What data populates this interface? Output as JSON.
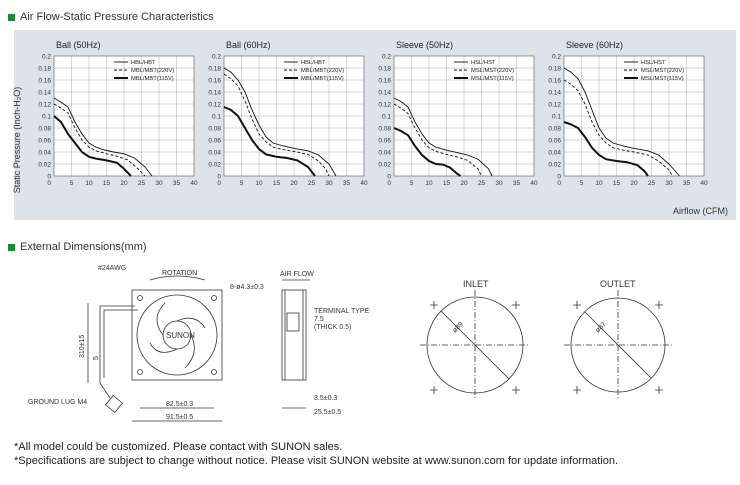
{
  "section1_title": "Air Flow-Static Pressure Characteristics",
  "section2_title": "External Dimensions(mm)",
  "y_axis_label": "Static Pressure (Inch-H₂O)",
  "x_axis_label": "Airflow (CFM)",
  "colors": {
    "accent": "#1a8a3a",
    "panel": "#dde3ea"
  },
  "chart_data": [
    {
      "type": "line",
      "title": "Ball (50Hz)",
      "xlim": [
        0,
        40
      ],
      "ylim": [
        0,
        0.2
      ],
      "x_ticks": [
        5,
        10,
        15,
        20,
        25,
        30,
        35,
        40
      ],
      "y_ticks": [
        "0",
        "0.02",
        "0.04",
        "0.06",
        "0.08",
        "0.1",
        "0.12",
        "0.14",
        "0.16",
        "0.18",
        "0.2"
      ],
      "series": [
        {
          "name": "HBL/HBT",
          "style": "thin",
          "points": [
            [
              0,
              0.13
            ],
            [
              2,
              0.123
            ],
            [
              4,
              0.115
            ],
            [
              6,
              0.09
            ],
            [
              8,
              0.07
            ],
            [
              10,
              0.055
            ],
            [
              12,
              0.048
            ],
            [
              14,
              0.044
            ],
            [
              17,
              0.04
            ],
            [
              20,
              0.037
            ],
            [
              23,
              0.03
            ],
            [
              26,
              0.015
            ],
            [
              28,
              0
            ]
          ]
        },
        {
          "name": "MBL/MBT(220V)",
          "style": "dashed",
          "points": [
            [
              0,
              0.12
            ],
            [
              2,
              0.113
            ],
            [
              4,
              0.105
            ],
            [
              6,
              0.08
            ],
            [
              8,
              0.06
            ],
            [
              10,
              0.048
            ],
            [
              12,
              0.042
            ],
            [
              15,
              0.037
            ],
            [
              18,
              0.033
            ],
            [
              21,
              0.027
            ],
            [
              24,
              0.012
            ],
            [
              26,
              0
            ]
          ]
        },
        {
          "name": "MBL/MBT(115V)",
          "style": "bold",
          "points": [
            [
              0,
              0.1
            ],
            [
              2,
              0.09
            ],
            [
              4,
              0.07
            ],
            [
              6,
              0.055
            ],
            [
              8,
              0.04
            ],
            [
              10,
              0.032
            ],
            [
              12,
              0.029
            ],
            [
              15,
              0.026
            ],
            [
              18,
              0.022
            ],
            [
              20,
              0.012
            ],
            [
              22,
              0
            ]
          ]
        }
      ]
    },
    {
      "type": "line",
      "title": "Ball (60Hz)",
      "xlim": [
        0,
        40
      ],
      "ylim": [
        0,
        0.2
      ],
      "x_ticks": [
        5,
        10,
        15,
        20,
        25,
        30,
        35,
        40
      ],
      "y_ticks": [
        "0",
        "0.02",
        "0.04",
        "0.06",
        "0.08",
        "0.1",
        "0.12",
        "0.14",
        "0.16",
        "0.18",
        "0.2"
      ],
      "series": [
        {
          "name": "HBL/HBT",
          "style": "thin",
          "points": [
            [
              0,
              0.18
            ],
            [
              2,
              0.173
            ],
            [
              4,
              0.16
            ],
            [
              6,
              0.14
            ],
            [
              8,
              0.11
            ],
            [
              10,
              0.085
            ],
            [
              12,
              0.065
            ],
            [
              14,
              0.055
            ],
            [
              17,
              0.05
            ],
            [
              20,
              0.046
            ],
            [
              24,
              0.042
            ],
            [
              27,
              0.035
            ],
            [
              30,
              0.02
            ],
            [
              32,
              0
            ]
          ]
        },
        {
          "name": "MBL/MBT(220V)",
          "style": "dashed",
          "points": [
            [
              0,
              0.17
            ],
            [
              2,
              0.162
            ],
            [
              4,
              0.15
            ],
            [
              6,
              0.125
            ],
            [
              8,
              0.095
            ],
            [
              10,
              0.07
            ],
            [
              12,
              0.057
            ],
            [
              14,
              0.048
            ],
            [
              17,
              0.044
            ],
            [
              20,
              0.041
            ],
            [
              24,
              0.036
            ],
            [
              27,
              0.025
            ],
            [
              29,
              0.012
            ],
            [
              30,
              0
            ]
          ]
        },
        {
          "name": "MBL/MBT(115V)",
          "style": "bold",
          "points": [
            [
              0,
              0.115
            ],
            [
              2,
              0.11
            ],
            [
              4,
              0.1
            ],
            [
              6,
              0.08
            ],
            [
              8,
              0.06
            ],
            [
              10,
              0.045
            ],
            [
              12,
              0.036
            ],
            [
              15,
              0.032
            ],
            [
              18,
              0.03
            ],
            [
              21,
              0.026
            ],
            [
              24,
              0.015
            ],
            [
              26,
              0
            ]
          ]
        }
      ]
    },
    {
      "type": "line",
      "title": "Sleeve (50Hz)",
      "xlim": [
        0,
        40
      ],
      "ylim": [
        0,
        0.2
      ],
      "x_ticks": [
        5,
        10,
        15,
        20,
        25,
        30,
        35,
        40
      ],
      "y_ticks": [
        "0",
        "0.02",
        "0.04",
        "0.06",
        "0.08",
        "0.1",
        "0.12",
        "0.14",
        "0.16",
        "0.18",
        "0.2"
      ],
      "series": [
        {
          "name": "HSL/HST",
          "style": "thin",
          "points": [
            [
              0,
              0.13
            ],
            [
              2,
              0.124
            ],
            [
              4,
              0.115
            ],
            [
              6,
              0.09
            ],
            [
              8,
              0.07
            ],
            [
              10,
              0.055
            ],
            [
              12,
              0.048
            ],
            [
              15,
              0.043
            ],
            [
              18,
              0.039
            ],
            [
              21,
              0.035
            ],
            [
              24,
              0.028
            ],
            [
              27,
              0.012
            ],
            [
              28,
              0
            ]
          ]
        },
        {
          "name": "MSL/MST(220V)",
          "style": "dashed",
          "points": [
            [
              0,
              0.12
            ],
            [
              2,
              0.113
            ],
            [
              4,
              0.104
            ],
            [
              6,
              0.08
            ],
            [
              8,
              0.06
            ],
            [
              10,
              0.047
            ],
            [
              12,
              0.041
            ],
            [
              15,
              0.036
            ],
            [
              18,
              0.032
            ],
            [
              21,
              0.026
            ],
            [
              24,
              0.012
            ],
            [
              25,
              0
            ]
          ]
        },
        {
          "name": "MSL/MST(115V)",
          "style": "bold",
          "points": [
            [
              0,
              0.08
            ],
            [
              2,
              0.075
            ],
            [
              4,
              0.068
            ],
            [
              6,
              0.05
            ],
            [
              8,
              0.035
            ],
            [
              10,
              0.025
            ],
            [
              12,
              0.02
            ],
            [
              14,
              0.019
            ],
            [
              16,
              0.014
            ],
            [
              18,
              0.004
            ],
            [
              19,
              0
            ]
          ]
        }
      ]
    },
    {
      "type": "line",
      "title": "Sleeve (60Hz)",
      "xlim": [
        0,
        40
      ],
      "ylim": [
        0,
        0.2
      ],
      "x_ticks": [
        5,
        10,
        15,
        20,
        25,
        30,
        35,
        40
      ],
      "y_ticks": [
        "0",
        "0.02",
        "0.04",
        "0.06",
        "0.08",
        "0.1",
        "0.12",
        "0.14",
        "0.16",
        "0.18",
        "0.2"
      ],
      "series": [
        {
          "name": "HSL/HST",
          "style": "thin",
          "points": [
            [
              0,
              0.18
            ],
            [
              2,
              0.173
            ],
            [
              4,
              0.162
            ],
            [
              6,
              0.14
            ],
            [
              8,
              0.11
            ],
            [
              10,
              0.08
            ],
            [
              12,
              0.063
            ],
            [
              14,
              0.055
            ],
            [
              17,
              0.05
            ],
            [
              20,
              0.046
            ],
            [
              24,
              0.042
            ],
            [
              27,
              0.035
            ],
            [
              30,
              0.02
            ],
            [
              33,
              0
            ]
          ]
        },
        {
          "name": "MSL/MST(220V)",
          "style": "dashed",
          "points": [
            [
              0,
              0.16
            ],
            [
              2,
              0.153
            ],
            [
              4,
              0.142
            ],
            [
              6,
              0.12
            ],
            [
              8,
              0.09
            ],
            [
              10,
              0.068
            ],
            [
              12,
              0.055
            ],
            [
              14,
              0.047
            ],
            [
              17,
              0.043
            ],
            [
              20,
              0.04
            ],
            [
              24,
              0.035
            ],
            [
              27,
              0.025
            ],
            [
              30,
              0.01
            ],
            [
              31,
              0
            ]
          ]
        },
        {
          "name": "MSL/MST(115V)",
          "style": "bold",
          "points": [
            [
              0,
              0.09
            ],
            [
              2,
              0.086
            ],
            [
              4,
              0.08
            ],
            [
              6,
              0.065
            ],
            [
              8,
              0.047
            ],
            [
              10,
              0.035
            ],
            [
              12,
              0.028
            ],
            [
              15,
              0.025
            ],
            [
              18,
              0.023
            ],
            [
              21,
              0.018
            ],
            [
              23,
              0.008
            ],
            [
              24,
              0
            ]
          ]
        }
      ]
    }
  ],
  "dimensions": {
    "wire": "#24AWG",
    "rotation": "ROTATION",
    "hole": "8-ø4.3±0.3",
    "airflow": "AIR FLOW",
    "terminal": [
      "TERMINAL TYPE",
      "7.5",
      "(THICK 0.5)"
    ],
    "brand": "SUNON",
    "lead_length": "310±15",
    "lead_small": "5",
    "ground_lug": "GROUND LUG M4",
    "dim_825": "82.5±0.3",
    "dim_915": "91.5±0.5",
    "dim_35": "3.5±0.3",
    "dim_255": "25.5±0.5",
    "inlet": "INLET",
    "outlet": "OUTLET",
    "inlet_dia": "ø89",
    "outlet_dia": "ø87"
  },
  "notes": [
    "*All model could be customized. Please contact with SUNON sales.",
    "*Specifications are subject to change without notice. Please visit SUNON website at www.sunon.com for update information."
  ]
}
